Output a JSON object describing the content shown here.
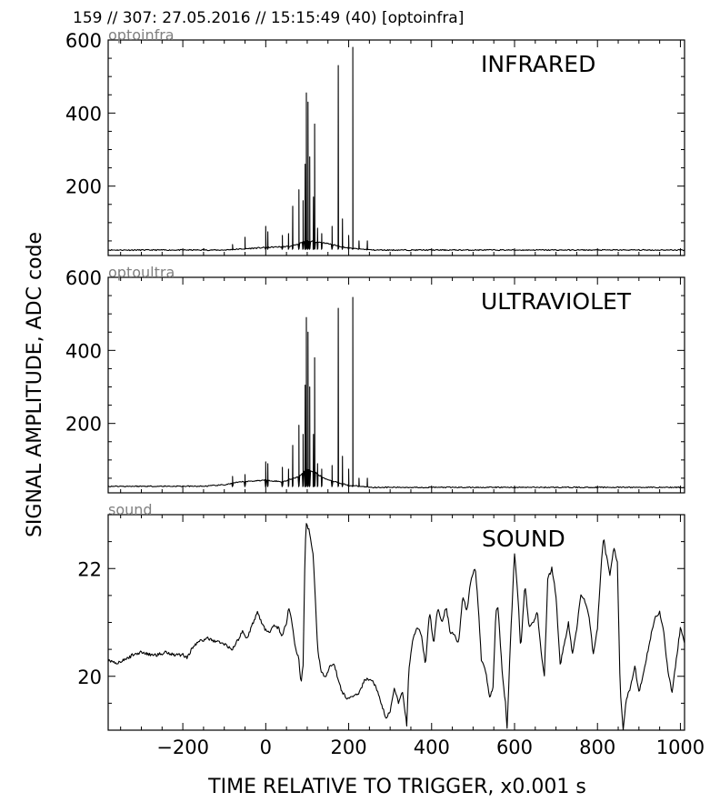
{
  "header": "159 // 307:   27.05.2016 // 15:15:49 (40)  [optoinfra]",
  "ylabel": "SIGNAL AMPLITUDE,  ADC code",
  "xlabel": "TIME RELATIVE TO TRIGGER,   x0.001 s",
  "x_ticks": [
    "−200",
    "0",
    "200",
    "400",
    "600",
    "800",
    "1000"
  ],
  "panels": [
    {
      "channel": "optoinfra",
      "title": "INFRARED",
      "y_ticks": [
        "200",
        "400",
        "600"
      ]
    },
    {
      "channel": "optoultra",
      "title": "ULTRAVIOLET",
      "y_ticks": [
        "200",
        "400",
        "600"
      ]
    },
    {
      "channel": "sound",
      "title": "SOUND",
      "y_ticks": [
        "20",
        "22"
      ]
    }
  ],
  "chart_data": [
    {
      "type": "line",
      "title": "INFRARED",
      "channel": "optoinfra",
      "xlim": [
        -380,
        1010
      ],
      "ylim": [
        10,
        600
      ],
      "baseline": 25,
      "spikes": [
        [
          -150,
          28
        ],
        [
          -80,
          40
        ],
        [
          -50,
          60
        ],
        [
          0,
          90
        ],
        [
          5,
          75
        ],
        [
          40,
          65
        ],
        [
          55,
          70
        ],
        [
          65,
          145
        ],
        [
          80,
          190
        ],
        [
          90,
          160
        ],
        [
          95,
          260
        ],
        [
          98,
          455
        ],
        [
          102,
          430
        ],
        [
          106,
          280
        ],
        [
          115,
          170
        ],
        [
          118,
          370
        ],
        [
          125,
          85
        ],
        [
          135,
          70
        ],
        [
          160,
          90
        ],
        [
          175,
          530
        ],
        [
          185,
          110
        ],
        [
          200,
          65
        ],
        [
          210,
          580
        ],
        [
          225,
          50
        ],
        [
          245,
          50
        ]
      ],
      "envelope": [
        [
          -100,
          25
        ],
        [
          0,
          32
        ],
        [
          60,
          35
        ],
        [
          100,
          50
        ],
        [
          140,
          45
        ],
        [
          200,
          30
        ],
        [
          260,
          25
        ]
      ]
    },
    {
      "type": "line",
      "title": "ULTRAVIOLET",
      "channel": "optoultra",
      "xlim": [
        -380,
        1010
      ],
      "ylim": [
        10,
        600
      ],
      "baseline": 25,
      "spikes": [
        [
          -80,
          55
        ],
        [
          -50,
          60
        ],
        [
          0,
          95
        ],
        [
          5,
          90
        ],
        [
          40,
          80
        ],
        [
          55,
          75
        ],
        [
          65,
          140
        ],
        [
          80,
          195
        ],
        [
          90,
          170
        ],
        [
          95,
          305
        ],
        [
          98,
          490
        ],
        [
          102,
          450
        ],
        [
          106,
          300
        ],
        [
          115,
          170
        ],
        [
          118,
          380
        ],
        [
          125,
          90
        ],
        [
          135,
          75
        ],
        [
          160,
          85
        ],
        [
          175,
          515
        ],
        [
          185,
          110
        ],
        [
          200,
          75
        ],
        [
          210,
          545
        ],
        [
          225,
          50
        ],
        [
          245,
          50
        ]
      ],
      "envelope": [
        [
          -150,
          28
        ],
        [
          -100,
          32
        ],
        [
          -60,
          40
        ],
        [
          0,
          45
        ],
        [
          40,
          40
        ],
        [
          80,
          55
        ],
        [
          100,
          75
        ],
        [
          120,
          65
        ],
        [
          140,
          50
        ],
        [
          200,
          30
        ],
        [
          260,
          25
        ]
      ]
    },
    {
      "type": "line",
      "title": "SOUND",
      "channel": "sound",
      "xlim": [
        -380,
        1010
      ],
      "ylim": [
        19.0,
        23.0
      ],
      "points": [
        [
          -380,
          20.3
        ],
        [
          -360,
          20.25
        ],
        [
          -340,
          20.3
        ],
        [
          -320,
          20.4
        ],
        [
          -300,
          20.45
        ],
        [
          -280,
          20.4
        ],
        [
          -260,
          20.4
        ],
        [
          -240,
          20.45
        ],
        [
          -220,
          20.4
        ],
        [
          -200,
          20.4
        ],
        [
          -190,
          20.35
        ],
        [
          -175,
          20.55
        ],
        [
          -160,
          20.65
        ],
        [
          -140,
          20.7
        ],
        [
          -120,
          20.65
        ],
        [
          -100,
          20.6
        ],
        [
          -80,
          20.5
        ],
        [
          -65,
          20.7
        ],
        [
          -55,
          20.85
        ],
        [
          -45,
          20.7
        ],
        [
          -35,
          20.9
        ],
        [
          -20,
          21.2
        ],
        [
          -10,
          21.0
        ],
        [
          0,
          20.85
        ],
        [
          10,
          20.8
        ],
        [
          20,
          20.95
        ],
        [
          30,
          20.9
        ],
        [
          40,
          20.75
        ],
        [
          50,
          21.0
        ],
        [
          55,
          21.25
        ],
        [
          60,
          21.15
        ],
        [
          70,
          20.6
        ],
        [
          80,
          20.3
        ],
        [
          85,
          19.85
        ],
        [
          90,
          20.2
        ],
        [
          95,
          22.4
        ],
        [
          98,
          22.85
        ],
        [
          105,
          22.7
        ],
        [
          115,
          22.2
        ],
        [
          125,
          20.5
        ],
        [
          135,
          20.05
        ],
        [
          145,
          20.0
        ],
        [
          155,
          20.2
        ],
        [
          165,
          20.25
        ],
        [
          175,
          19.9
        ],
        [
          185,
          19.7
        ],
        [
          195,
          19.6
        ],
        [
          210,
          19.6
        ],
        [
          225,
          19.7
        ],
        [
          240,
          19.95
        ],
        [
          260,
          19.9
        ],
        [
          275,
          19.6
        ],
        [
          290,
          19.2
        ],
        [
          300,
          19.35
        ],
        [
          310,
          19.8
        ],
        [
          320,
          19.5
        ],
        [
          330,
          19.7
        ],
        [
          340,
          19.1
        ],
        [
          345,
          20.1
        ],
        [
          355,
          20.7
        ],
        [
          365,
          20.9
        ],
        [
          375,
          20.8
        ],
        [
          385,
          20.2
        ],
        [
          395,
          21.2
        ],
        [
          405,
          20.6
        ],
        [
          415,
          21.3
        ],
        [
          425,
          21.0
        ],
        [
          435,
          21.3
        ],
        [
          445,
          20.8
        ],
        [
          455,
          20.8
        ],
        [
          465,
          20.6
        ],
        [
          475,
          21.5
        ],
        [
          485,
          21.2
        ],
        [
          495,
          21.8
        ],
        [
          505,
          22.0
        ],
        [
          510,
          21.6
        ],
        [
          520,
          20.3
        ],
        [
          530,
          20.1
        ],
        [
          540,
          19.6
        ],
        [
          548,
          19.8
        ],
        [
          555,
          21.2
        ],
        [
          560,
          21.3
        ],
        [
          570,
          20.1
        ],
        [
          578,
          19.5
        ],
        [
          582,
          19.05
        ],
        [
          590,
          20.6
        ],
        [
          600,
          22.3
        ],
        [
          608,
          21.5
        ],
        [
          615,
          20.5
        ],
        [
          625,
          21.7
        ],
        [
          635,
          20.9
        ],
        [
          645,
          21.0
        ],
        [
          655,
          21.2
        ],
        [
          665,
          20.4
        ],
        [
          672,
          20.0
        ],
        [
          680,
          21.8
        ],
        [
          690,
          22.0
        ],
        [
          700,
          21.5
        ],
        [
          710,
          20.2
        ],
        [
          720,
          20.6
        ],
        [
          730,
          21.0
        ],
        [
          740,
          20.4
        ],
        [
          750,
          20.9
        ],
        [
          760,
          21.5
        ],
        [
          770,
          21.4
        ],
        [
          780,
          21.1
        ],
        [
          790,
          20.4
        ],
        [
          800,
          20.9
        ],
        [
          810,
          22.2
        ],
        [
          815,
          22.6
        ],
        [
          820,
          22.3
        ],
        [
          830,
          21.9
        ],
        [
          840,
          22.4
        ],
        [
          848,
          22.1
        ],
        [
          855,
          19.7
        ],
        [
          862,
          19.0
        ],
        [
          870,
          19.6
        ],
        [
          880,
          19.8
        ],
        [
          890,
          20.2
        ],
        [
          900,
          19.7
        ],
        [
          910,
          20.0
        ],
        [
          920,
          20.4
        ],
        [
          930,
          20.8
        ],
        [
          940,
          21.1
        ],
        [
          950,
          21.2
        ],
        [
          960,
          20.8
        ],
        [
          970,
          20.1
        ],
        [
          980,
          19.7
        ],
        [
          990,
          20.3
        ],
        [
          1000,
          20.9
        ],
        [
          1010,
          20.6
        ]
      ]
    }
  ]
}
